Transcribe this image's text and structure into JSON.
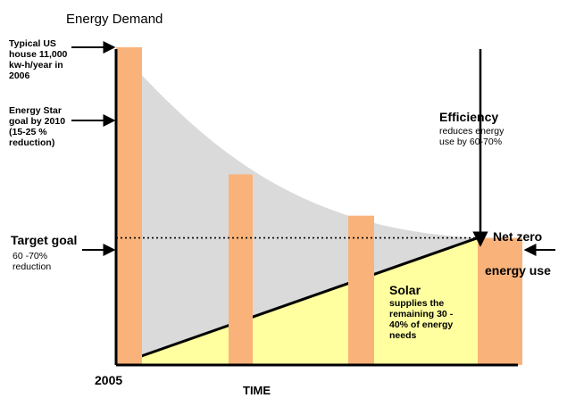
{
  "chart_data": {
    "type": "bar",
    "title": "Energy Demand",
    "xlabel": "TIME",
    "x_tick": "2005",
    "ylabel": "",
    "ylim": [
      0,
      100
    ],
    "grid": false,
    "bars": {
      "color": "#F9B37A",
      "values": [
        100,
        60,
        47,
        40
      ]
    },
    "demand_curve": {
      "fill": "#DADADA",
      "start": 100,
      "end": 40
    },
    "solar_triangle": {
      "fill": "#FFFFA0",
      "start": 0,
      "end": 40
    },
    "target_line": {
      "value": 40,
      "style": "dotted"
    },
    "annotations": {
      "typical": [
        "Typical US",
        "house 11,000",
        "kw-h/year in",
        "2006"
      ],
      "energy_star": [
        "Energy Star",
        "goal by 2010",
        "(15-25 %",
        "reduction)"
      ],
      "target_title": "Target goal",
      "target_sub": [
        "60 -70%",
        "reduction"
      ],
      "efficiency_title": "Efficiency",
      "efficiency_sub": [
        "reduces energy",
        "use by 60-70%"
      ],
      "net_zero": "Net zero",
      "energy_use": "energy use",
      "solar_title": "Solar",
      "solar_sub": [
        "supplies the",
        "remaining 30 -",
        "40% of energy",
        "needs"
      ]
    }
  }
}
